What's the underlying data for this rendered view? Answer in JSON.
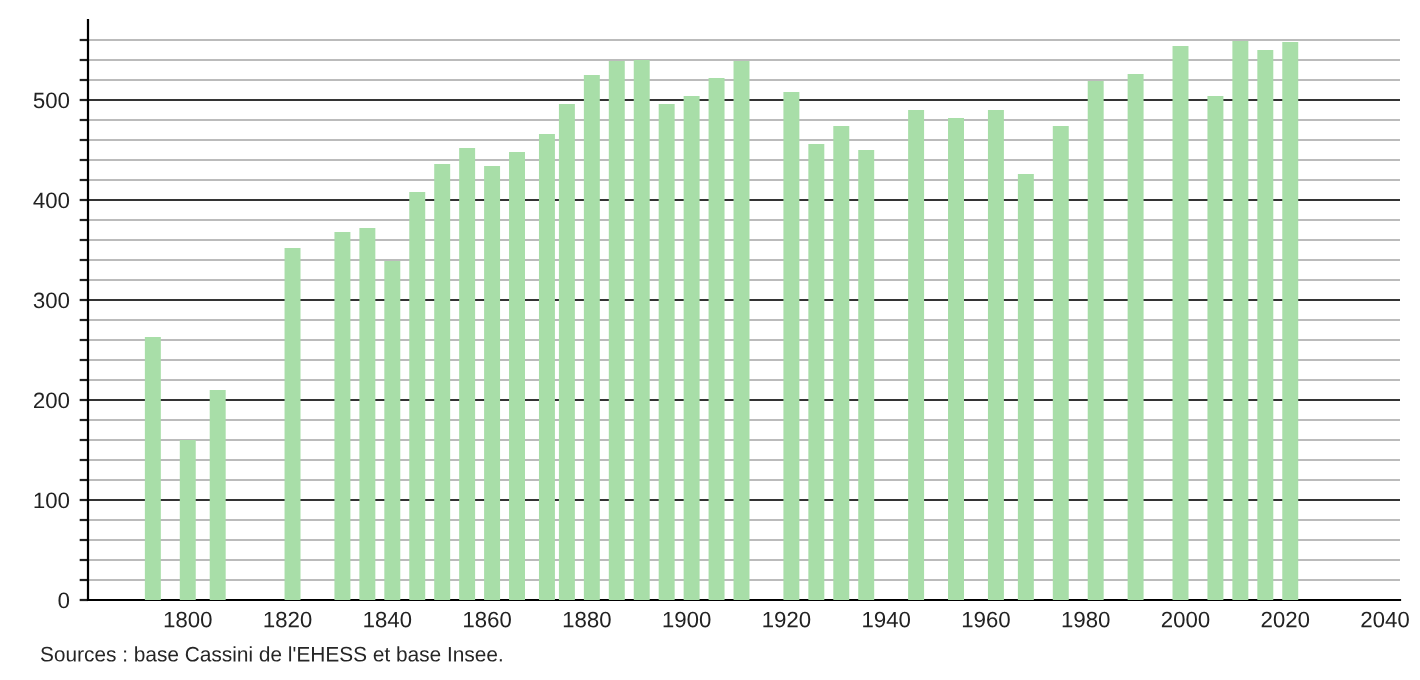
{
  "chart_data": {
    "type": "bar",
    "x": [
      1793,
      1800,
      1806,
      1821,
      1831,
      1836,
      1841,
      1846,
      1851,
      1856,
      1861,
      1866,
      1872,
      1876,
      1881,
      1886,
      1891,
      1896,
      1901,
      1906,
      1911,
      1921,
      1926,
      1931,
      1936,
      1946,
      1954,
      1962,
      1968,
      1975,
      1982,
      1990,
      1999,
      2006,
      2011,
      2016,
      2021
    ],
    "values": [
      263,
      160,
      210,
      352,
      368,
      372,
      339,
      408,
      436,
      452,
      434,
      448,
      466,
      496,
      525,
      539,
      540,
      496,
      504,
      522,
      539,
      508,
      456,
      474,
      450,
      490,
      482,
      490,
      426,
      474,
      519,
      526,
      554,
      504,
      559,
      550,
      558
    ],
    "color": "#a8dea8",
    "xlim": [
      1780,
      2043
    ],
    "xticks": [
      1800,
      1820,
      1840,
      1860,
      1880,
      1900,
      1920,
      1940,
      1960,
      1980,
      2000,
      2020,
      2040
    ],
    "ylim": [
      0,
      580
    ],
    "yticks": [
      0,
      {
        "value": 20,
        "label": null
      },
      {
        "value": 40,
        "label": null
      },
      {
        "value": 60,
        "label": null
      },
      {
        "value": 80,
        "label": null
      },
      100,
      {
        "value": 120,
        "label": null
      },
      {
        "value": 140,
        "label": null
      },
      {
        "value": 160,
        "label": null
      },
      {
        "value": 180,
        "label": null
      },
      200,
      {
        "value": 220,
        "label": null
      },
      {
        "value": 240,
        "label": null
      },
      {
        "value": 260,
        "label": null
      },
      {
        "value": 280,
        "label": null
      },
      300,
      {
        "value": 320,
        "label": null
      },
      {
        "value": 340,
        "label": null
      },
      {
        "value": 360,
        "label": null
      },
      {
        "value": 380,
        "label": null
      },
      400,
      {
        "value": 420,
        "label": null
      },
      {
        "value": 440,
        "label": null
      },
      {
        "value": 460,
        "label": null
      },
      {
        "value": 480,
        "label": null
      },
      500,
      {
        "value": 520,
        "label": null
      },
      {
        "value": 540,
        "label": null
      },
      {
        "value": 560,
        "label": null
      }
    ],
    "grid": "y",
    "annotations": [
      "Sources : base Cassini de l'EHESS et base Insee."
    ]
  }
}
